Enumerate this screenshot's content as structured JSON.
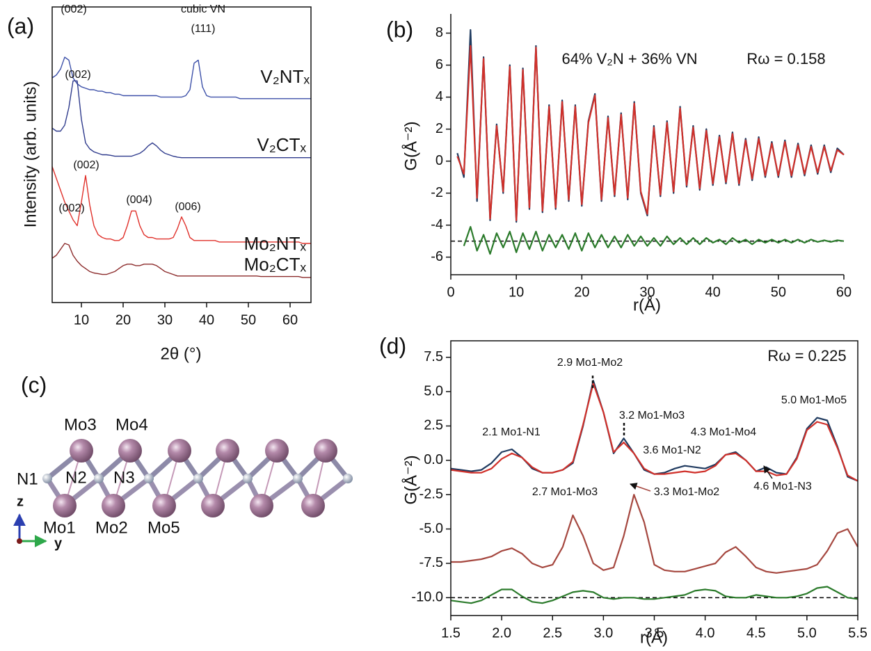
{
  "panel_labels": [
    "(a)",
    "(b)",
    "(c)",
    "(d)"
  ],
  "structure": {
    "atom_labels": [
      "Mo3",
      "Mo4",
      "N1",
      "N2",
      "N3",
      "Mo1",
      "Mo2",
      "Mo5"
    ],
    "axis_labels": [
      "z",
      "y"
    ]
  },
  "chart_data": [
    {
      "type": "line",
      "xlabel": "2θ (°)",
      "ylabel": "Intensity (arb. units)",
      "xlim": [
        3,
        65
      ],
      "ylim": [
        0,
        10
      ],
      "xticks": [
        10,
        20,
        30,
        40,
        50,
        60
      ],
      "annotations": [
        "(002)",
        "(002)",
        "(002)",
        "(002)",
        "(004)",
        "(006)",
        "cubic VN",
        "(111)"
      ],
      "x": [
        3,
        4,
        5,
        6,
        7,
        8,
        9,
        10,
        11,
        12,
        13,
        14,
        15,
        16,
        17,
        18,
        19,
        20,
        21,
        22,
        23,
        24,
        25,
        26,
        27,
        28,
        29,
        30,
        31,
        32,
        33,
        34,
        35,
        36,
        37,
        38,
        39,
        40,
        41,
        42,
        43,
        44,
        45,
        46,
        47,
        48,
        49,
        50,
        51,
        52,
        53,
        54,
        55,
        56,
        57,
        58,
        59,
        60,
        61,
        62,
        63,
        64,
        65
      ],
      "series": [
        {
          "name": "V₂NTₓ",
          "color": "#3b4fa8",
          "values": [
            7.6,
            7.7,
            7.9,
            8.3,
            8.2,
            7.6,
            7.4,
            7.3,
            7.25,
            7.2,
            7.2,
            7.15,
            7.15,
            7.1,
            7.1,
            7.05,
            7.05,
            7.0,
            7.0,
            7.0,
            7.0,
            7.0,
            7.0,
            7.0,
            7.0,
            7.0,
            6.95,
            6.95,
            6.95,
            6.95,
            6.95,
            6.95,
            7.0,
            7.2,
            8.1,
            8.2,
            7.3,
            7.0,
            6.95,
            6.95,
            6.95,
            6.95,
            6.95,
            6.95,
            6.95,
            6.9,
            6.9,
            6.9,
            6.9,
            6.9,
            6.9,
            6.9,
            6.9,
            6.9,
            6.9,
            6.9,
            6.9,
            6.9,
            6.9,
            6.9,
            6.9,
            6.9,
            6.9
          ]
        },
        {
          "name": "V₂CTₓ",
          "color": "#2e3a8c",
          "values": [
            5.9,
            5.8,
            5.8,
            6.0,
            6.6,
            7.5,
            7.5,
            6.2,
            5.4,
            5.2,
            5.1,
            5.05,
            5.0,
            5.0,
            4.98,
            4.95,
            4.95,
            4.95,
            4.95,
            4.95,
            5.0,
            5.05,
            5.15,
            5.3,
            5.4,
            5.3,
            5.15,
            5.05,
            5.0,
            4.95,
            4.92,
            4.9,
            4.9,
            4.9,
            4.9,
            4.9,
            4.9,
            4.9,
            4.9,
            4.9,
            4.9,
            4.9,
            4.9,
            4.9,
            4.9,
            4.9,
            4.9,
            4.9,
            4.9,
            4.9,
            4.9,
            4.9,
            4.9,
            4.9,
            4.9,
            4.9,
            4.9,
            4.9,
            4.9,
            4.9,
            4.9,
            4.9,
            4.9
          ]
        },
        {
          "name": "Mo₂NTₓ",
          "color": "#e0302a",
          "values": [
            4.6,
            4.2,
            3.8,
            3.4,
            3.1,
            2.8,
            2.6,
            3.4,
            4.3,
            3.3,
            2.6,
            2.3,
            2.2,
            2.15,
            2.15,
            2.1,
            2.1,
            2.2,
            2.6,
            3.1,
            3.1,
            2.6,
            2.3,
            2.2,
            2.2,
            2.15,
            2.15,
            2.15,
            2.15,
            2.2,
            2.5,
            2.9,
            2.6,
            2.2,
            2.1,
            2.1,
            2.1,
            2.1,
            2.1,
            2.1,
            2.05,
            2.05,
            2.05,
            2.05,
            2.05,
            2.05,
            2.05,
            2.05,
            2.05,
            2.05,
            2.05,
            2.05,
            2.05,
            2.05,
            2.05,
            2.05,
            2.05,
            2.05,
            2.05,
            2.05,
            2.0,
            2.0,
            2.0
          ]
        },
        {
          "name": "Mo₂CTₓ",
          "color": "#8b2a2a",
          "values": [
            1.5,
            1.6,
            1.8,
            2.0,
            1.95,
            1.6,
            1.4,
            1.25,
            1.15,
            1.05,
            1.0,
            0.98,
            0.95,
            0.95,
            1.0,
            1.05,
            1.15,
            1.25,
            1.3,
            1.3,
            1.25,
            1.25,
            1.3,
            1.3,
            1.3,
            1.25,
            1.15,
            1.05,
            1.0,
            0.95,
            0.9,
            0.9,
            0.9,
            0.9,
            0.9,
            0.9,
            0.9,
            0.9,
            0.9,
            0.9,
            0.9,
            0.9,
            0.9,
            0.9,
            0.9,
            0.9,
            0.9,
            0.9,
            0.9,
            0.9,
            0.88,
            0.88,
            0.88,
            0.88,
            0.88,
            0.88,
            0.88,
            0.88,
            0.88,
            0.88,
            0.85,
            0.85,
            0.85
          ]
        }
      ]
    },
    {
      "type": "line",
      "xlabel": "r(Å)",
      "ylabel": "G(Å⁻²)",
      "xlim": [
        0,
        60
      ],
      "ylim": [
        -7.1,
        9.2
      ],
      "xticks": [
        0,
        10,
        20,
        30,
        40,
        50,
        60
      ],
      "yticks": [
        -6,
        -4,
        -2,
        0,
        2,
        4,
        6,
        8
      ],
      "reference_line": -5,
      "annotations": [
        "64% V₂N + 36% VN",
        "Rω = 0.158"
      ],
      "x": [
        1,
        2,
        3,
        4,
        5,
        6,
        7,
        8,
        9,
        10,
        11,
        12,
        13,
        14,
        15,
        16,
        17,
        18,
        19,
        20,
        21,
        22,
        23,
        24,
        25,
        26,
        27,
        28,
        29,
        30,
        31,
        32,
        33,
        34,
        35,
        36,
        37,
        38,
        39,
        40,
        41,
        42,
        43,
        44,
        45,
        46,
        47,
        48,
        49,
        50,
        51,
        52,
        53,
        54,
        55,
        56,
        57,
        58,
        59,
        60
      ],
      "series": [
        {
          "color": "#1f3a5f",
          "values": [
            0.5,
            -1.0,
            8.2,
            -2.5,
            6.5,
            -3.7,
            2.3,
            -2.0,
            6.0,
            -3.8,
            5.8,
            -3.0,
            7.2,
            -3.2,
            3.5,
            -3.0,
            3.8,
            -2.5,
            3.5,
            -2.8,
            2.5,
            4.2,
            -2.5,
            2.8,
            -2.2,
            3.0,
            -2.4,
            3.7,
            -2.0,
            -3.4,
            2.2,
            -2.2,
            2.5,
            -2.0,
            3.4,
            -1.6,
            2.2,
            -1.8,
            2.0,
            -1.5,
            1.6,
            -1.4,
            1.8,
            -1.5,
            1.4,
            -1.2,
            1.5,
            -1.0,
            1.2,
            -1.0,
            1.3,
            -1.0,
            1.1,
            -0.9,
            1.0,
            -0.8,
            1.0,
            -0.7,
            0.8,
            0.4
          ]
        },
        {
          "color": "#d0302a",
          "values": [
            0.3,
            -0.8,
            7.2,
            -2.3,
            6.4,
            -3.6,
            2.2,
            -1.9,
            5.9,
            -3.7,
            5.7,
            -2.9,
            7.1,
            -3.1,
            3.4,
            -2.9,
            3.7,
            -2.4,
            3.4,
            -2.7,
            2.4,
            4.1,
            -2.4,
            2.7,
            -2.1,
            2.9,
            -2.3,
            3.6,
            -1.9,
            -3.3,
            2.1,
            -2.1,
            2.4,
            -1.9,
            3.3,
            -1.5,
            2.1,
            -1.7,
            1.9,
            -1.4,
            1.5,
            -1.3,
            1.7,
            -1.4,
            1.3,
            -1.1,
            1.4,
            -0.9,
            1.1,
            -0.9,
            1.2,
            -0.9,
            1.0,
            -0.8,
            0.9,
            -0.7,
            0.9,
            -0.6,
            0.7,
            0.4
          ]
        },
        {
          "color": "#2a7a2a",
          "values": [
            null,
            -5.3,
            -4.1,
            -5.6,
            -4.6,
            -5.8,
            -4.5,
            -5.4,
            -4.4,
            -5.7,
            -4.5,
            -5.5,
            -4.4,
            -5.6,
            -4.6,
            -5.4,
            -4.6,
            -5.5,
            -4.5,
            -5.6,
            -4.5,
            -5.4,
            -4.6,
            -5.4,
            -4.7,
            -5.4,
            -4.6,
            -5.3,
            -4.7,
            -5.3,
            -4.8,
            -5.3,
            -4.7,
            -5.2,
            -4.8,
            -5.2,
            -4.8,
            -5.2,
            -4.8,
            -5.1,
            -4.9,
            -5.2,
            -4.8,
            -5.1,
            -4.9,
            -5.2,
            -4.9,
            -5.1,
            -4.9,
            -5.1,
            -4.9,
            -5.1,
            -4.9,
            -5.1,
            -4.9,
            -5.05,
            -4.95,
            -5.05,
            -4.95,
            -5.0
          ]
        }
      ]
    },
    {
      "type": "line",
      "xlabel": "r(Å)",
      "ylabel": "G(Å⁻²)",
      "xlim": [
        1.5,
        5.5
      ],
      "ylim": [
        -11.3,
        8.7
      ],
      "xticks": [
        1.5,
        {
          "value": 2,
          "label": "2.0"
        },
        2.5,
        {
          "value": 3,
          "label": "3.0"
        },
        3.5,
        {
          "value": 4,
          "label": "4.0"
        },
        4.5,
        {
          "value": 5,
          "label": "5.0"
        },
        5.5
      ],
      "yticks": [
        {
          "value": -10,
          "label": "-10.0"
        },
        -7.5,
        {
          "value": -5,
          "label": "-5.0"
        },
        -2.5,
        {
          "value": 0,
          "label": "0.0"
        },
        2.5,
        {
          "value": 5,
          "label": "5.0"
        },
        7.5
      ],
      "reference_line": -10,
      "annotations": [
        "Rω = 0.225",
        "2.9 Mo1-Mo2",
        "3.2 Mo1-Mo3",
        "2.1 Mo1-N1",
        "4.3 Mo1-Mo4",
        "5.0 Mo1-Mo5",
        "3.6 Mo1-N2",
        "4.6 Mo1-N3",
        "2.7 Mo1-Mo3",
        "3.3 Mo1-Mo2"
      ],
      "x": [
        1.5,
        1.6,
        1.7,
        1.8,
        1.9,
        2.0,
        2.1,
        2.2,
        2.3,
        2.4,
        2.5,
        2.6,
        2.7,
        2.8,
        2.9,
        3.0,
        3.1,
        3.2,
        3.3,
        3.4,
        3.5,
        3.6,
        3.7,
        3.8,
        3.9,
        4.0,
        4.1,
        4.2,
        4.3,
        4.4,
        4.5,
        4.6,
        4.7,
        4.8,
        4.9,
        5.0,
        5.1,
        5.2,
        5.3,
        5.4,
        5.5
      ],
      "series": [
        {
          "color": "#1f3a5f",
          "values": [
            -0.6,
            -0.7,
            -0.8,
            -0.7,
            -0.2,
            0.6,
            0.8,
            0.2,
            -0.6,
            -0.9,
            -0.9,
            -0.7,
            -0.2,
            2.5,
            5.8,
            3.5,
            0.5,
            1.6,
            0.5,
            -0.7,
            -1.0,
            -0.9,
            -0.6,
            -0.4,
            -0.5,
            -0.6,
            -0.3,
            0.4,
            0.6,
            0.0,
            -0.8,
            -0.5,
            -0.9,
            -1.0,
            0.2,
            2.3,
            3.1,
            2.9,
            1.0,
            -1.2,
            -1.5
          ]
        },
        {
          "color": "#d0302a",
          "values": [
            -0.7,
            -0.8,
            -0.9,
            -0.9,
            -0.6,
            0.1,
            0.5,
            0.2,
            -0.5,
            -0.9,
            -0.9,
            -0.7,
            -0.1,
            2.6,
            5.6,
            3.5,
            0.6,
            1.3,
            0.5,
            -0.6,
            -1.0,
            -1.0,
            -0.9,
            -0.8,
            -0.9,
            -0.8,
            -0.4,
            0.4,
            0.5,
            0.0,
            -0.8,
            -0.8,
            -1.1,
            -1.0,
            0.1,
            2.2,
            2.8,
            2.6,
            0.9,
            -1.1,
            -1.5
          ]
        },
        {
          "color": "#a5473f",
          "values": [
            -7.4,
            -7.4,
            -7.3,
            -7.2,
            -7.0,
            -6.6,
            -6.4,
            -6.8,
            -7.5,
            -7.8,
            -7.6,
            -6.3,
            -4.0,
            -5.5,
            -7.5,
            -8.0,
            -7.8,
            -5.5,
            -2.5,
            -4.5,
            -7.6,
            -8.0,
            -8.1,
            -8.1,
            -7.9,
            -7.7,
            -7.5,
            -6.7,
            -6.3,
            -7.0,
            -7.8,
            -8.1,
            -8.2,
            -8.1,
            -8.0,
            -7.9,
            -7.6,
            -6.6,
            -5.3,
            -5.0,
            -6.3
          ]
        },
        {
          "color": "#2a7a2a",
          "values": [
            -10.2,
            -10.3,
            -10.4,
            -10.2,
            -9.8,
            -9.4,
            -9.4,
            -9.9,
            -10.3,
            -10.4,
            -10.2,
            -9.9,
            -9.6,
            -9.5,
            -9.6,
            -10.0,
            -10.1,
            -10.0,
            -10.0,
            -10.1,
            -10.1,
            -10.0,
            -9.9,
            -9.8,
            -9.5,
            -9.4,
            -9.5,
            -9.9,
            -10.0,
            -10.0,
            -9.8,
            -9.9,
            -10.0,
            -10.0,
            -9.9,
            -9.7,
            -9.3,
            -9.2,
            -9.6,
            -10.0,
            -10.1
          ]
        }
      ]
    }
  ]
}
